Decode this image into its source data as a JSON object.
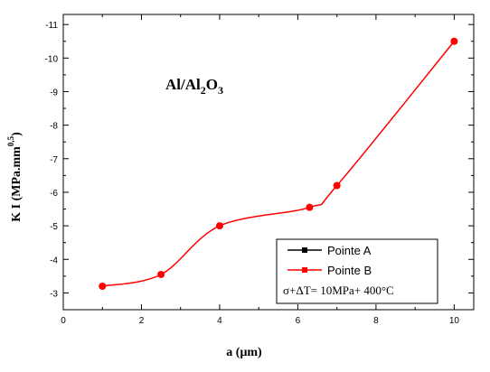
{
  "chart_data": {
    "type": "line",
    "title": "Al/Al2O3",
    "title_parts": {
      "a": "Al/Al",
      "b": "2",
      "c": "O",
      "d": "3"
    },
    "xlabel": "a (μm)",
    "ylabel": "K I (MPa.mm",
    "ylabel_superscript": "0,5",
    "ylabel_close": ")",
    "xlim": [
      0,
      10.5
    ],
    "ylim": [
      -2.5,
      -11.3
    ],
    "y_inverted": true,
    "x_ticks": [
      0,
      2,
      4,
      6,
      8,
      10
    ],
    "x_tick_labels": [
      "0",
      "2",
      "4",
      "6",
      "8",
      "10"
    ],
    "y_ticks": [
      -3,
      -4,
      -5,
      -6,
      -7,
      -8,
      -9,
      -10,
      -11
    ],
    "y_tick_labels": [
      "-3",
      "-4",
      "-5",
      "-6",
      "-7",
      "-8",
      "-9",
      "-10",
      "-11"
    ],
    "grid": false,
    "legend_position": "bottom-right",
    "series": [
      {
        "name": "Pointe A",
        "color": "#000000",
        "marker": "square",
        "x": [],
        "y": []
      },
      {
        "name": "Pointe B",
        "color": "#ff0000",
        "marker": "circle-square",
        "x": [
          1,
          2.5,
          4,
          6.3,
          7,
          10
        ],
        "y": [
          -3.2,
          -3.55,
          -5.0,
          -5.55,
          -6.2,
          -10.5
        ]
      }
    ],
    "annotation": "σ+ΔT= 10MPa+ 400°C"
  }
}
